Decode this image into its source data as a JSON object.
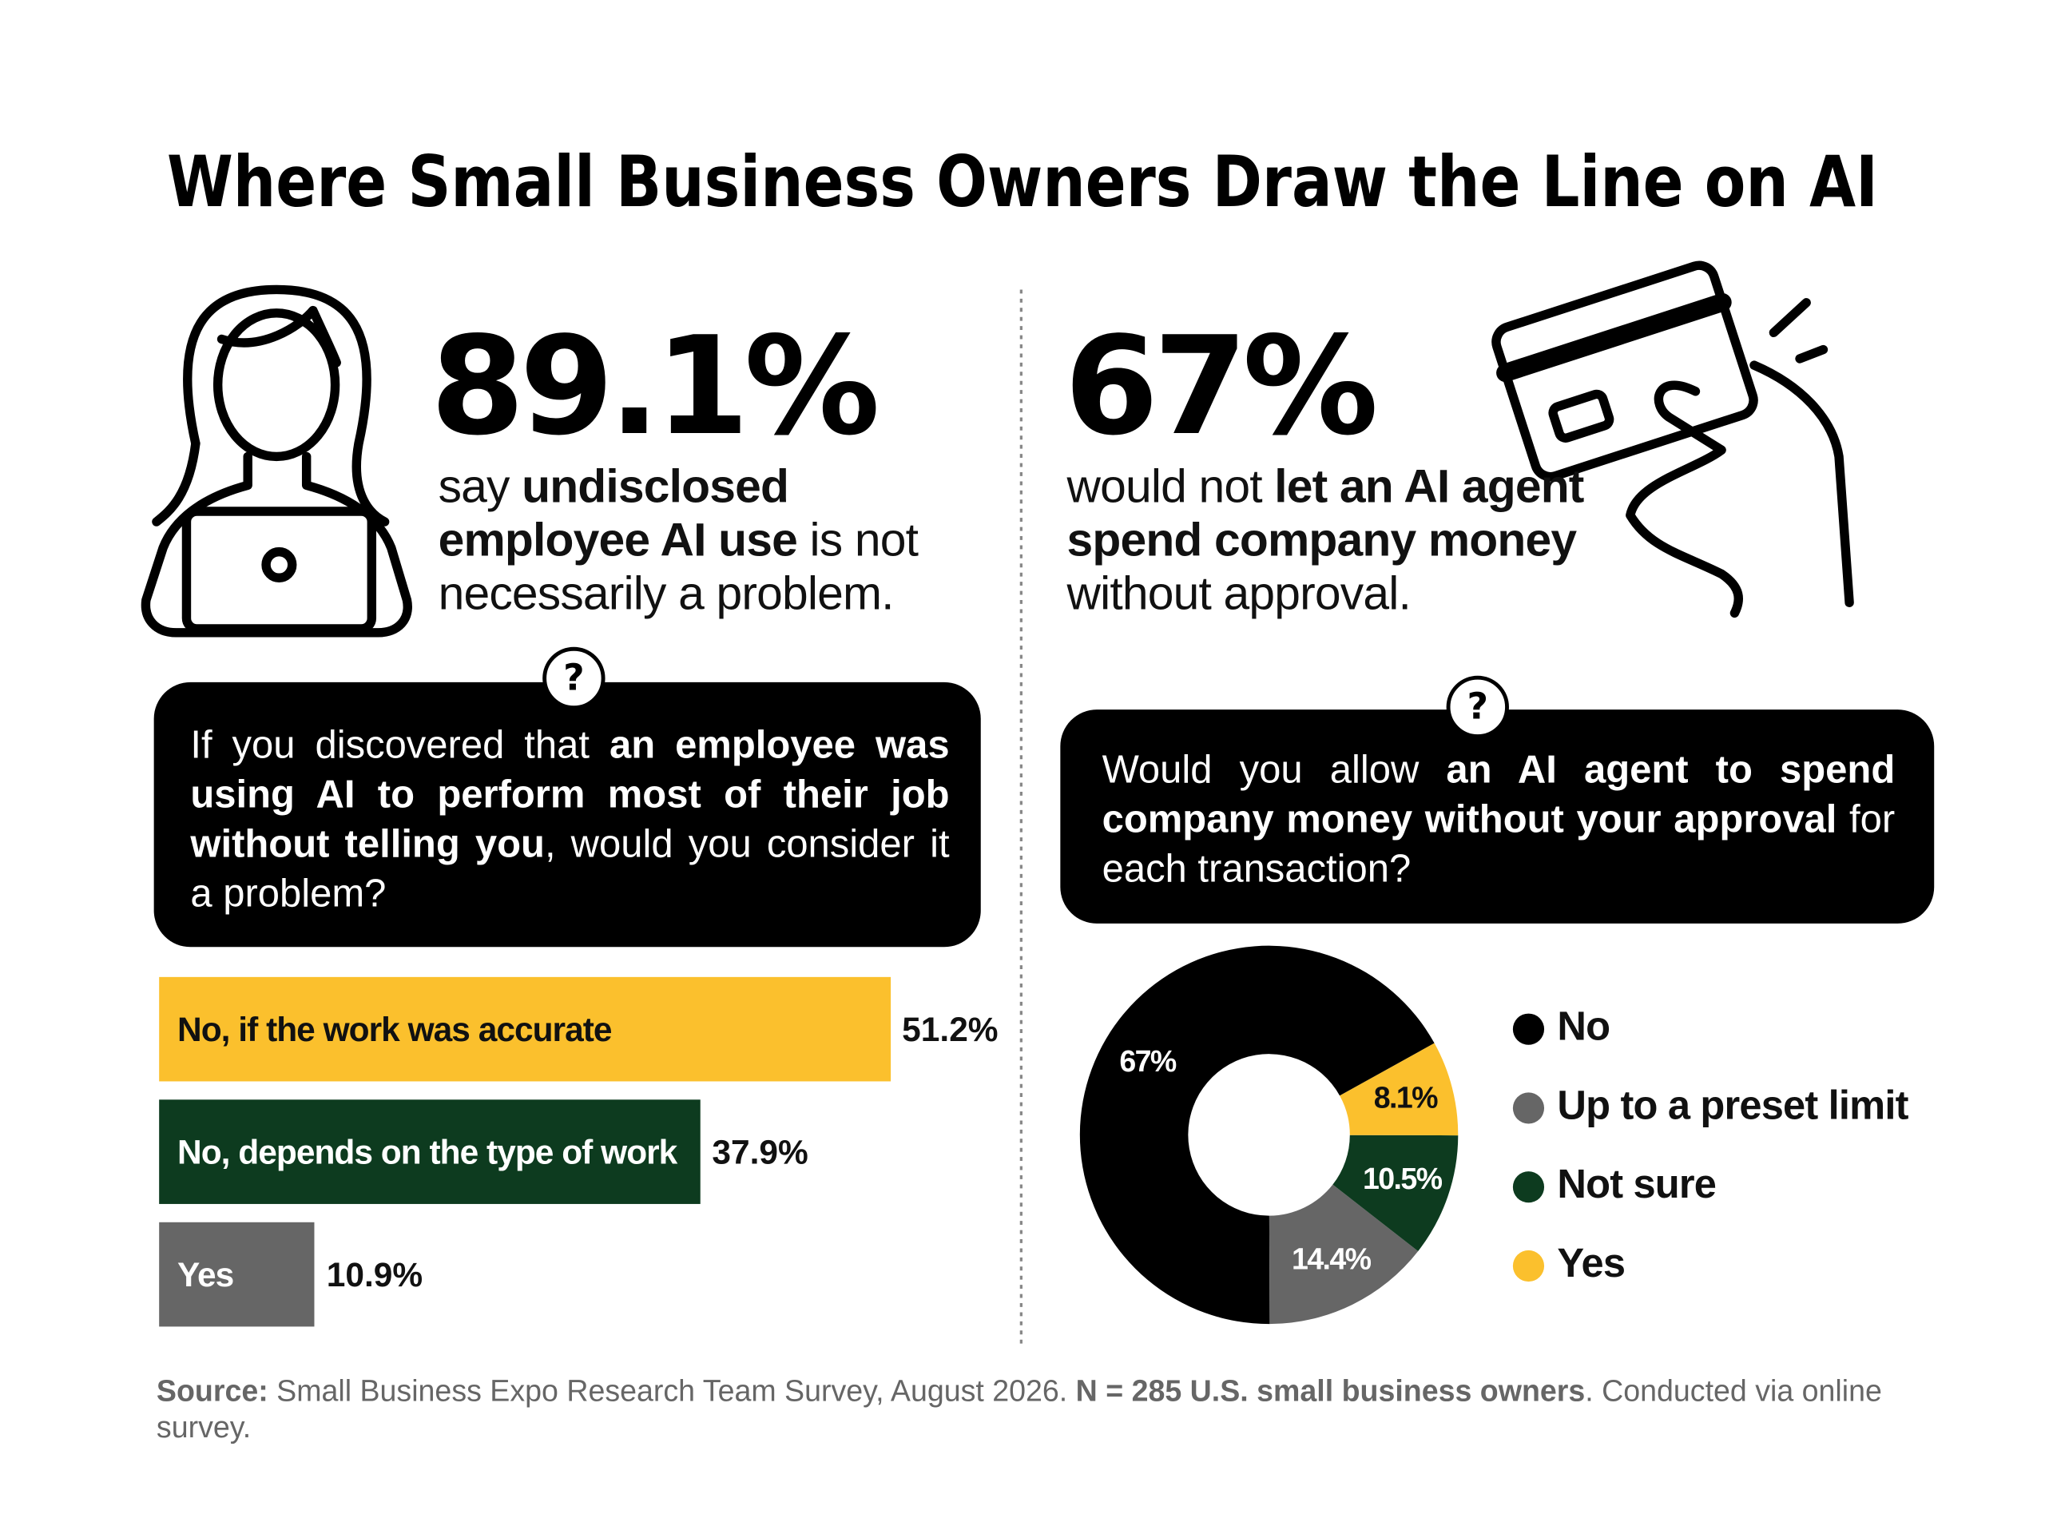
{
  "title": "Where Small Business Owners Draw the Line on AI",
  "left": {
    "stat": "89.1%",
    "statement": [
      "say ",
      "undisclosed employee AI use",
      " is not necessarily a problem."
    ],
    "question_mark": "?",
    "question": [
      "If you discovered that ",
      "an employee was using AI to perform most of their job without telling you",
      ", would you consider it a problem?"
    ]
  },
  "right": {
    "stat": "67%",
    "statement": [
      "would not ",
      "let an AI agent spend company money",
      " without approval."
    ],
    "question_mark": "?",
    "question": [
      "Would you allow ",
      "an AI agent to spend company money without your approval",
      " for each transaction?"
    ]
  },
  "chart_data": [
    {
      "type": "bar",
      "orientation": "horizontal",
      "categories": [
        "No, if the work was accurate",
        "No, depends on the type of work",
        "Yes"
      ],
      "values": [
        51.2,
        37.9,
        10.9
      ],
      "value_labels": [
        "51.2%",
        "37.9%",
        "10.9%"
      ],
      "colors": [
        "#fbc02d",
        "#0d3b1f",
        "#666666"
      ]
    },
    {
      "type": "donut",
      "categories": [
        "No",
        "Up to a preset limit",
        "Not sure",
        "Yes"
      ],
      "values": [
        67,
        14.4,
        10.5,
        8.1
      ],
      "value_labels": [
        "67%",
        "14.4%",
        "10.5%",
        "8.1%"
      ],
      "colors": [
        "#000000",
        "#666666",
        "#0d3b1f",
        "#fbc02d"
      ],
      "legend": "right"
    }
  ],
  "source": [
    "Source:",
    " Small Business Expo Research Team Survey, August 2026. ",
    "N = 285 U.S. small business owners",
    ". Conducted via online survey."
  ]
}
